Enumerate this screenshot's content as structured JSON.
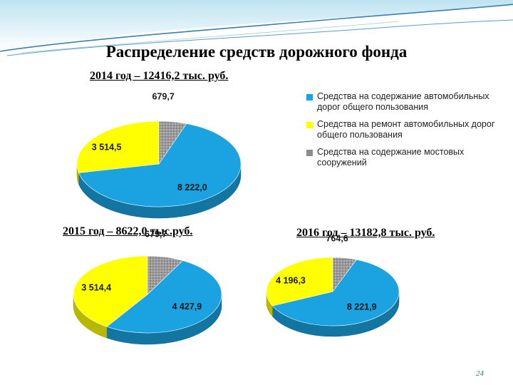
{
  "slide": {
    "title": "Распределение средств дорожного фонда",
    "page_number": "24"
  },
  "legend": {
    "items": [
      {
        "label": "Средства на содержание автомобильных дорог общего пользования",
        "color": "#1aa3e0"
      },
      {
        "label": "Средства на ремонт автомобильных дорог общего пользования",
        "color": "#ffff00"
      },
      {
        "label": "Средства на содержание мостовых сооружений",
        "color": "#8c8c8c"
      }
    ]
  },
  "chart_data": [
    {
      "type": "pie",
      "title": "2014 год – 12416,2 тыс. руб.",
      "categories": [
        "Средства на содержание автомобильных дорог общего пользования",
        "Средства на ремонт автомобильных дорог общего пользования",
        "Средства на содержание мостовых сооружений"
      ],
      "values": [
        8222.0,
        3514.5,
        679.7
      ],
      "labels": [
        "8 222,0",
        "3 514,5",
        "679,7"
      ],
      "colors": [
        "#1aa3e0",
        "#ffff00",
        "#8c8c8c"
      ]
    },
    {
      "type": "pie",
      "title": "2015 год – 8622,0 тыс.руб.",
      "categories": [
        "Средства на содержание автомобильных дорог общего пользования",
        "Средства на ремонт автомобильных дорог общего пользования",
        "Средства на содержание мостовых сооружений"
      ],
      "values": [
        4427.9,
        3514.4,
        679.7
      ],
      "labels": [
        "4 427,9",
        "3 514,4",
        "679,7"
      ],
      "colors": [
        "#1aa3e0",
        "#ffff00",
        "#8c8c8c"
      ]
    },
    {
      "type": "pie",
      "title": "2016 год – 13182,8 тыс. руб.",
      "categories": [
        "Средства на содержание автомобильных дорог общего пользования",
        "Средства на ремонт автомобильных дорог общего пользования",
        "Средства на содержание мостовых сооружений"
      ],
      "values": [
        8221.9,
        4196.3,
        764.6
      ],
      "labels": [
        "8 221,9",
        "4 196,3",
        "764,6"
      ],
      "colors": [
        "#1aa3e0",
        "#ffff00",
        "#8c8c8c"
      ]
    }
  ]
}
